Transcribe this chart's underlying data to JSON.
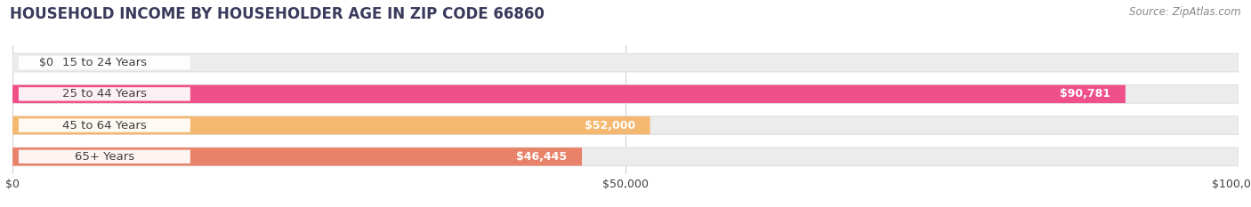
{
  "title": "HOUSEHOLD INCOME BY HOUSEHOLDER AGE IN ZIP CODE 66860",
  "source": "Source: ZipAtlas.com",
  "categories": [
    "15 to 24 Years",
    "25 to 44 Years",
    "45 to 64 Years",
    "65+ Years"
  ],
  "values": [
    0,
    90781,
    52000,
    46445
  ],
  "value_labels": [
    "$0",
    "$90,781",
    "$52,000",
    "$46,445"
  ],
  "bar_colors": [
    "#b0b0e0",
    "#f0508a",
    "#f5b870",
    "#e8836a"
  ],
  "xlim": [
    0,
    100000
  ],
  "xticks": [
    0,
    50000,
    100000
  ],
  "xtick_labels": [
    "$0",
    "$50,000",
    "$100,000"
  ],
  "figsize": [
    14.06,
    2.33
  ],
  "dpi": 100,
  "title_fontsize": 12,
  "cat_fontsize": 9.5,
  "val_fontsize": 9,
  "tick_fontsize": 9,
  "source_fontsize": 8.5,
  "bar_height": 0.58,
  "background_color": "#ffffff",
  "title_color": "#3a3a5c",
  "text_color": "#404040",
  "source_color": "#888888",
  "bar_bg_color": "#ececec",
  "bar_bg_edge_color": "#dedede",
  "label_pill_color": "#ffffff",
  "label_text_color": "#404040",
  "grid_color": "#d0d0d0"
}
